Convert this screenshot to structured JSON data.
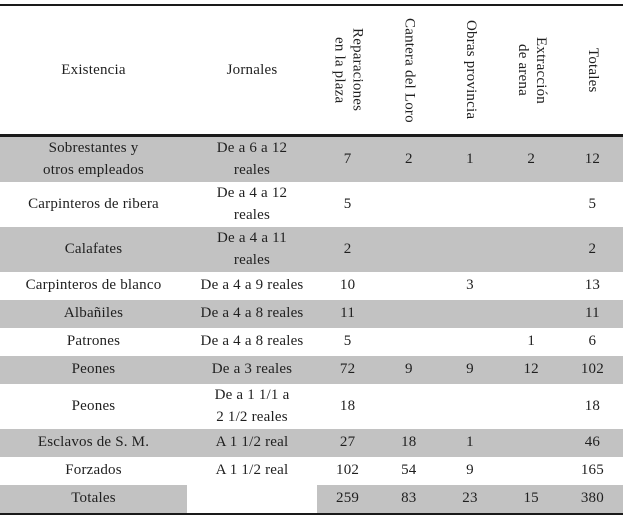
{
  "table": {
    "colors": {
      "row_shade": "#c2c2c2",
      "rule": "#1a1a1a",
      "text": "#1f1f1f"
    },
    "header": {
      "existencia": "Existencia",
      "jornales": "Jornales",
      "rotated": [
        {
          "lines": [
            "Reparaciones",
            "en la plaza"
          ]
        },
        {
          "lines": [
            "Cantera del Loro"
          ]
        },
        {
          "lines": [
            "Obras provincia"
          ]
        },
        {
          "lines": [
            "Extracción",
            "de arena"
          ]
        },
        {
          "lines": [
            "Totales"
          ]
        }
      ]
    },
    "rows": [
      {
        "existencia": [
          "Sobrestantes y",
          "otros empleados"
        ],
        "jornales": [
          "De a 6 a 12",
          "reales"
        ],
        "values": [
          "7",
          "2",
          "1",
          "2",
          "12"
        ],
        "shaded": true,
        "totals": false
      },
      {
        "existencia": [
          "Carpinteros de ribera"
        ],
        "jornales": [
          "De a 4 a 12",
          "reales"
        ],
        "values": [
          "5",
          "",
          "",
          "",
          "5"
        ],
        "shaded": false,
        "totals": false
      },
      {
        "existencia": [
          "Calafates"
        ],
        "jornales": [
          "De a 4 a 11",
          "reales"
        ],
        "values": [
          "2",
          "",
          "",
          "",
          "2"
        ],
        "shaded": true,
        "totals": false
      },
      {
        "existencia": [
          "Carpinteros de blanco"
        ],
        "jornales": [
          "De a 4 a 9 reales"
        ],
        "values": [
          "10",
          "",
          "3",
          "",
          "13"
        ],
        "shaded": false,
        "totals": false
      },
      {
        "existencia": [
          "Albañiles"
        ],
        "jornales": [
          "De a 4 a 8 reales"
        ],
        "values": [
          "11",
          "",
          "",
          "",
          "11"
        ],
        "shaded": true,
        "totals": false
      },
      {
        "existencia": [
          "Patrones"
        ],
        "jornales": [
          "De a 4 a 8 reales"
        ],
        "values": [
          "5",
          "",
          "",
          "1",
          "6"
        ],
        "shaded": false,
        "totals": false
      },
      {
        "existencia": [
          "Peones"
        ],
        "jornales": [
          "De a 3 reales"
        ],
        "values": [
          "72",
          "9",
          "9",
          "12",
          "102"
        ],
        "shaded": true,
        "totals": false
      },
      {
        "existencia": [
          "Peones"
        ],
        "jornales": [
          "De a 1 1/1 a",
          "2 1/2 reales"
        ],
        "values": [
          "18",
          "",
          "",
          "",
          "18"
        ],
        "shaded": false,
        "totals": false
      },
      {
        "existencia": [
          "Esclavos de S. M."
        ],
        "jornales": [
          "A 1 1/2 real"
        ],
        "values": [
          "27",
          "18",
          "1",
          "",
          "46"
        ],
        "shaded": true,
        "totals": false
      },
      {
        "existencia": [
          "Forzados"
        ],
        "jornales": [
          "A 1 1/2 real"
        ],
        "values": [
          "102",
          "54",
          "9",
          "",
          "165"
        ],
        "shaded": false,
        "totals": false
      },
      {
        "existencia": [
          "Totales"
        ],
        "jornales": [],
        "values": [
          "259",
          "83",
          "23",
          "15",
          "380"
        ],
        "shaded": true,
        "totals": true
      }
    ]
  }
}
